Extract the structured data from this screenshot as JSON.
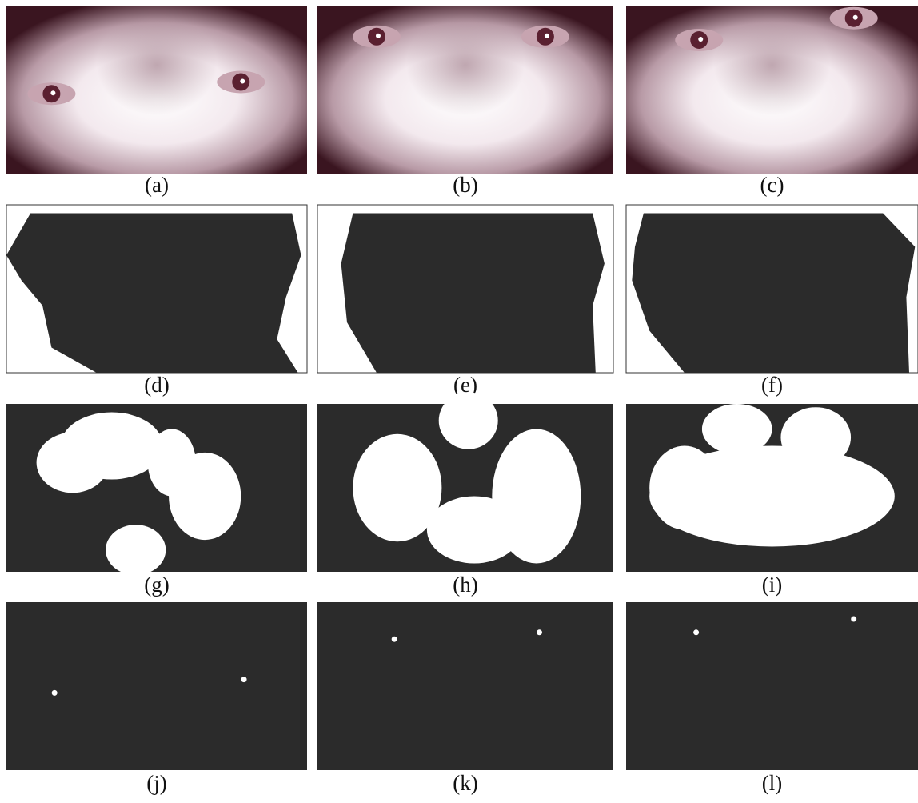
{
  "panels": [
    {
      "label": "(a)"
    },
    {
      "label": "(b)"
    },
    {
      "label": "(c)"
    },
    {
      "label": "(d)"
    },
    {
      "label": "(e)"
    },
    {
      "label": "(f)"
    },
    {
      "label": "(g)"
    },
    {
      "label": "(h)"
    },
    {
      "label": "(i)"
    },
    {
      "label": "(j)"
    },
    {
      "label": "(k)"
    },
    {
      "label": "(l)"
    }
  ]
}
